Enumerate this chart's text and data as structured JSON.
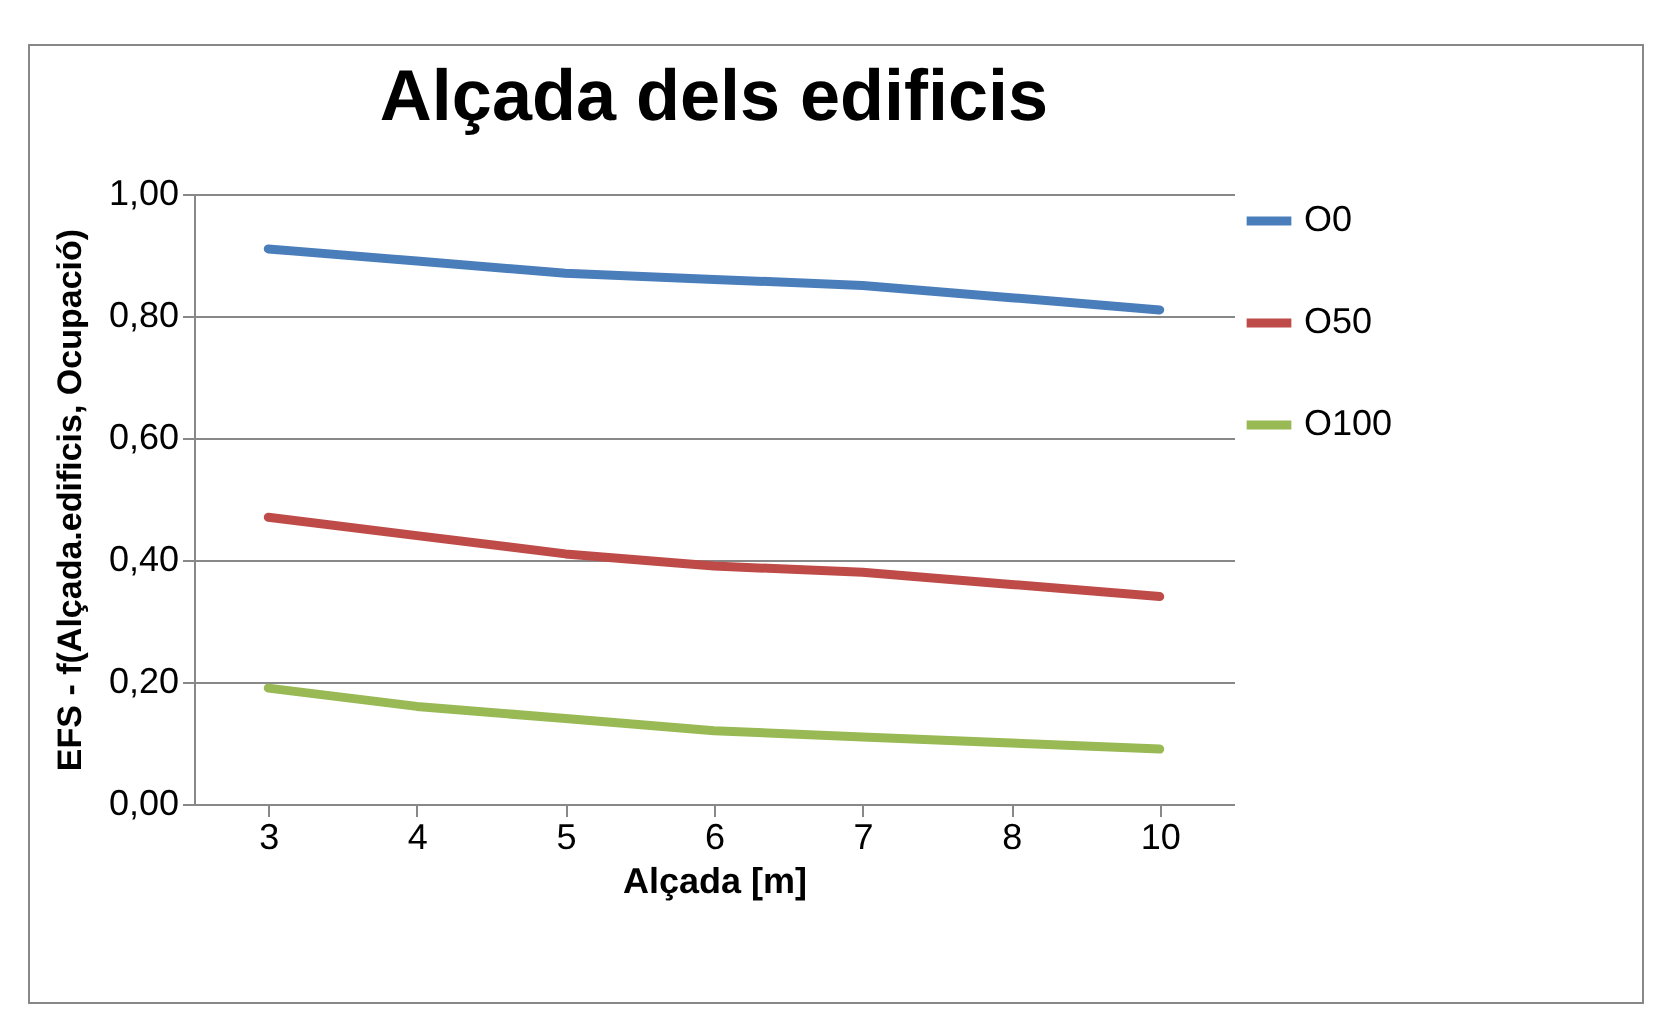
{
  "chart_data": {
    "type": "line",
    "title": "Alçada dels edificis",
    "xlabel": "Alçada [m]",
    "ylabel": "EFS - f(Alçada.edificis, Ocupació)",
    "categories": [
      "3",
      "4",
      "5",
      "6",
      "7",
      "8",
      "10"
    ],
    "series": [
      {
        "name": "O0",
        "color": "#4a7ebb",
        "values": [
          0.91,
          0.89,
          0.87,
          0.86,
          0.85,
          0.83,
          0.81
        ]
      },
      {
        "name": "O50",
        "color": "#be4b48",
        "values": [
          0.47,
          0.44,
          0.41,
          0.39,
          0.38,
          0.36,
          0.34
        ]
      },
      {
        "name": "O100",
        "color": "#98b954",
        "values": [
          0.19,
          0.16,
          0.14,
          0.12,
          0.11,
          0.1,
          0.09
        ]
      }
    ],
    "ylim": [
      0,
      1
    ],
    "yticks": [
      {
        "value": 0,
        "label": "0,00"
      },
      {
        "value": 0.2,
        "label": "0,20"
      },
      {
        "value": 0.4,
        "label": "0,40"
      },
      {
        "value": 0.6,
        "label": "0,60"
      },
      {
        "value": 0.8,
        "label": "0,80"
      },
      {
        "value": 1,
        "label": "1,00"
      }
    ],
    "grid": "y",
    "legend": "right",
    "marker": "none",
    "line_style": "solid"
  }
}
